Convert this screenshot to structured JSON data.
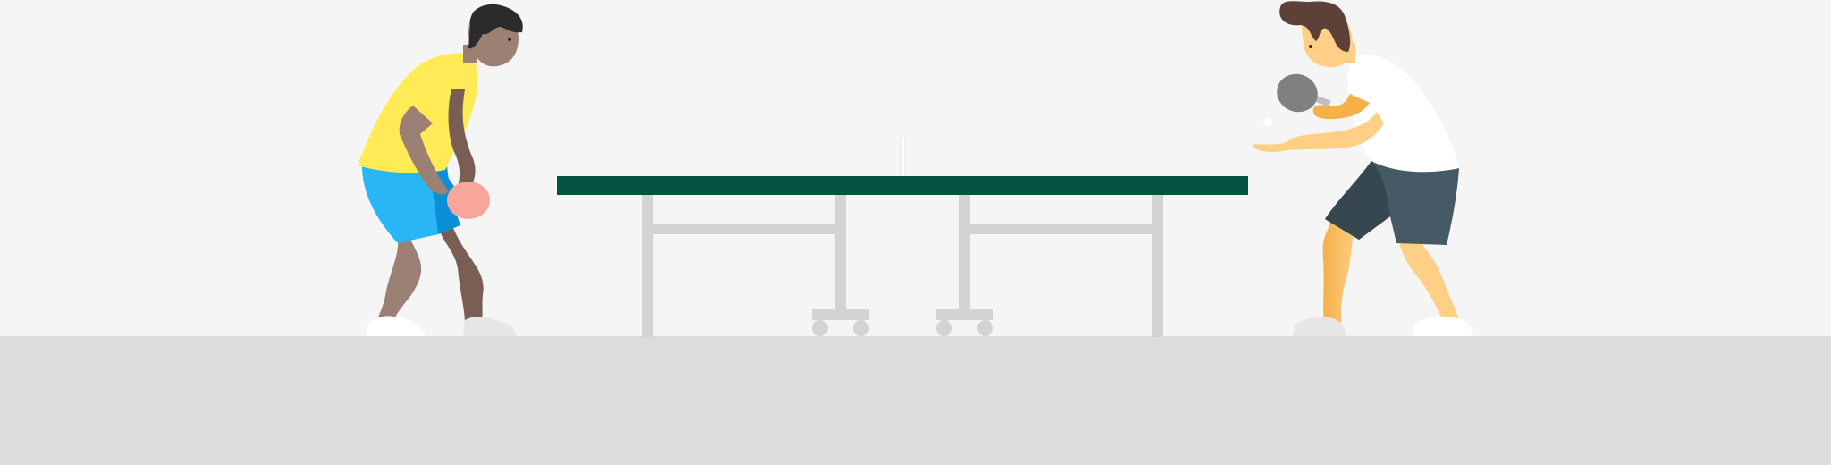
{
  "scene": {
    "description_hidden": "",
    "colors": {
      "background": "#f5f5f5",
      "floor": "#dcdcdc",
      "table_top": "#04523f",
      "table_legs": "#d3d3d3",
      "net": "#ffffff",
      "left_player_skin": "#9c8073",
      "left_player_skin_shade": "#7a5e54",
      "left_player_hair": "#2b2b2b",
      "left_player_shirt": "#ffeb55",
      "left_player_shorts": "#29b6f6",
      "left_player_shorts_shade": "#0a8fd6",
      "left_player_paddle": "#f8a59b",
      "left_player_shoes": "#ffffff",
      "right_player_skin": "#ffcf86",
      "right_player_skin_shade": "#f6b04a",
      "right_player_hair": "#5d4037",
      "right_player_shirt": "#ffffff",
      "right_player_shorts": "#455a64",
      "right_player_shorts_shade": "#37474f",
      "right_player_paddle": "#808080",
      "ball": "#ffffff"
    },
    "icons": {
      "left_player": "table-tennis-player-icon",
      "right_player": "table-tennis-player-icon",
      "table": "ping-pong-table-icon",
      "ball": "ball-icon"
    }
  }
}
